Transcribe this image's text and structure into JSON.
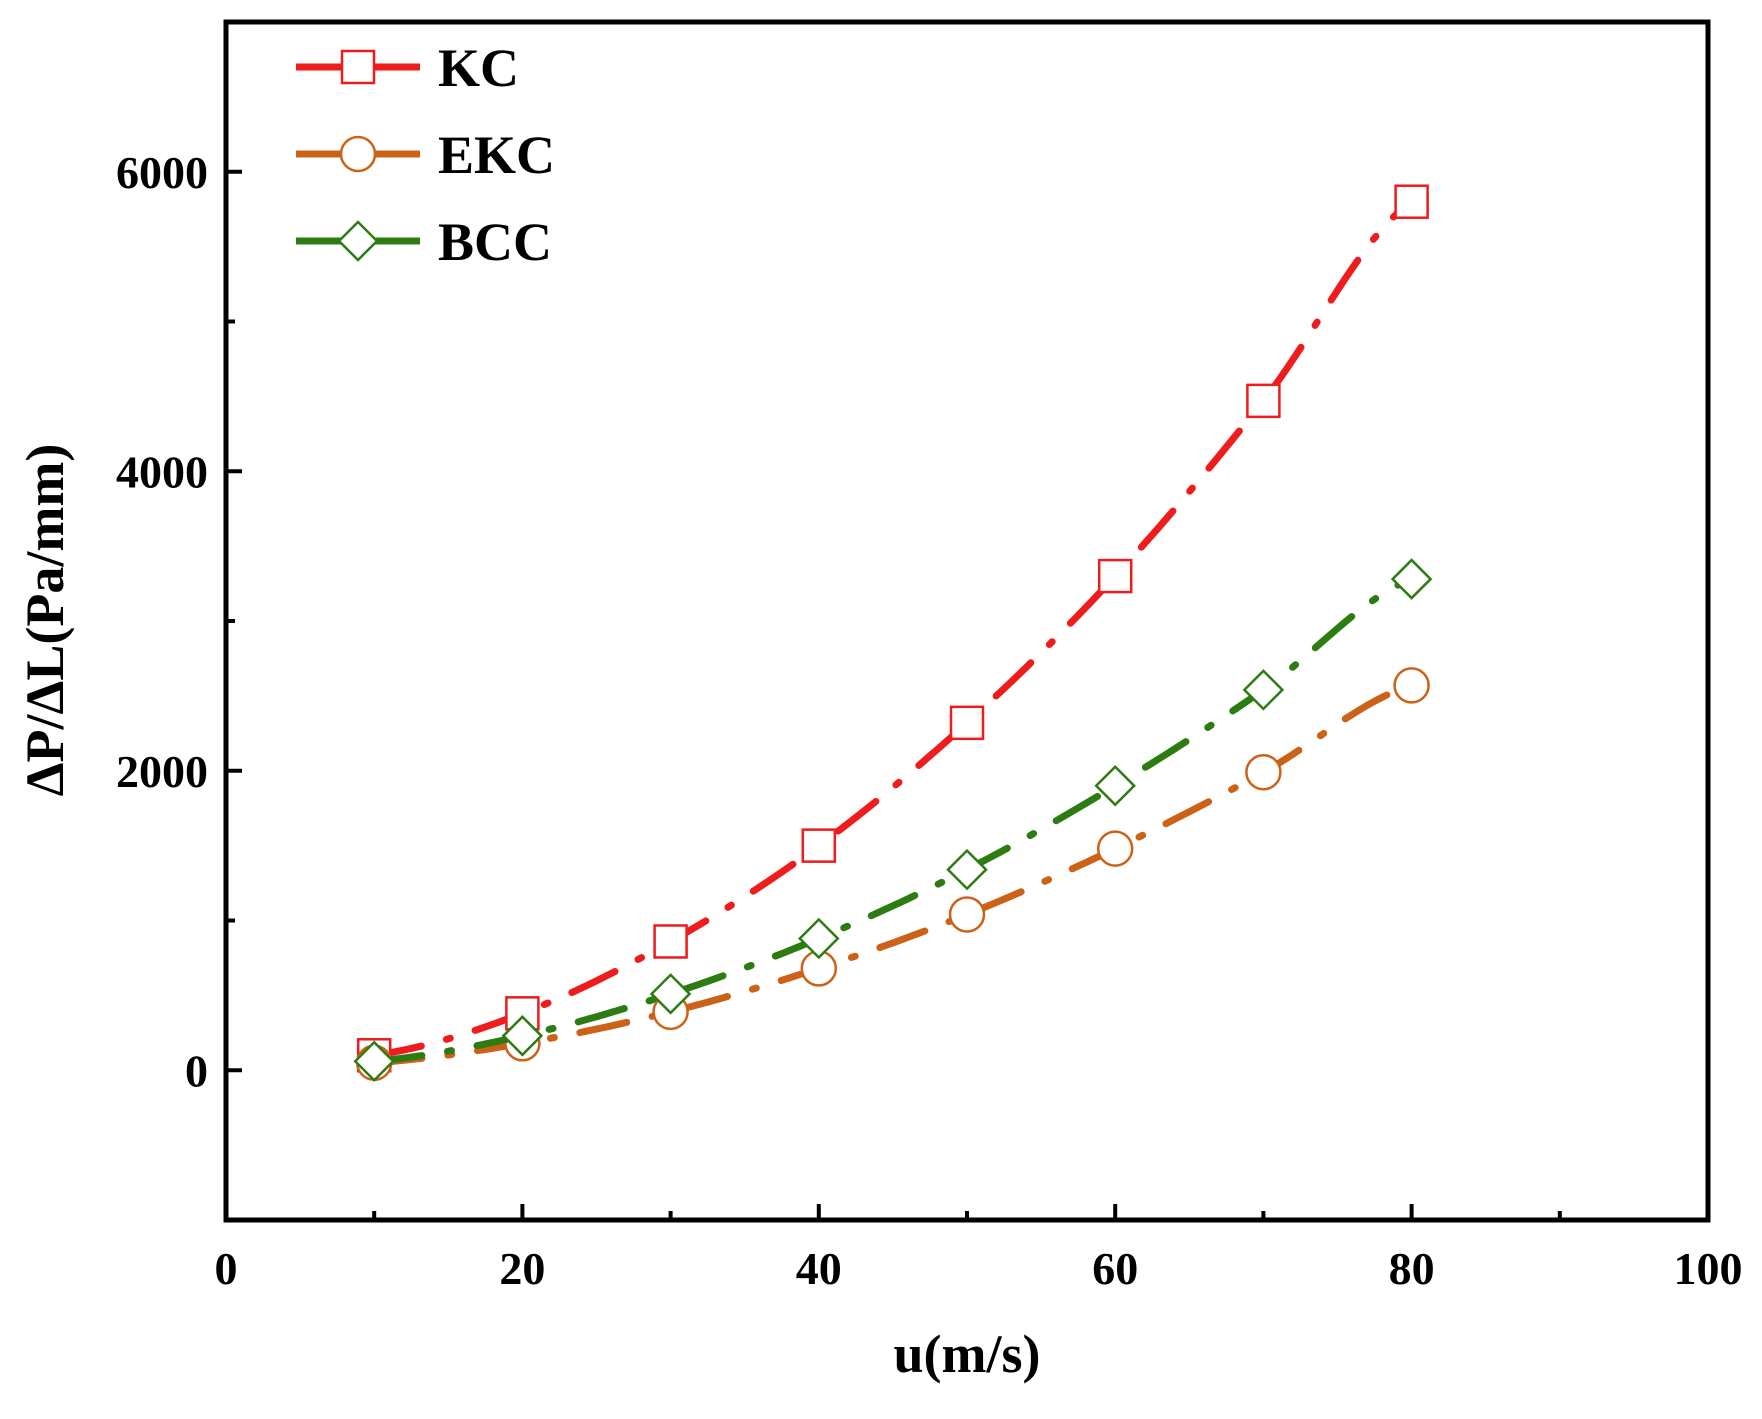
{
  "chart_data": {
    "type": "line",
    "title": "",
    "xlabel": "u(m/s)",
    "ylabel": "ΔP/ΔL(Pa/mm)",
    "xlim": [
      0,
      100
    ],
    "ylim": [
      -1000,
      7000
    ],
    "xticks": [
      0,
      20,
      40,
      60,
      80,
      100
    ],
    "xtick_labels": [
      "0",
      "20",
      "40",
      "60",
      "80",
      "100"
    ],
    "yticks": [
      0,
      2000,
      4000,
      6000
    ],
    "ytick_labels": [
      "0",
      "2000",
      "4000",
      "6000"
    ],
    "grid": false,
    "legend_position": "top-left",
    "x": [
      10,
      20,
      30,
      40,
      50,
      60,
      70,
      80
    ],
    "series": [
      {
        "name": "KC",
        "color": "#ee1c1c",
        "marker": "square",
        "values": [
          100,
          380,
          860,
          1500,
          2320,
          3300,
          4470,
          5800
        ]
      },
      {
        "name": "EKC",
        "color": "#cc6218",
        "marker": "circle",
        "values": [
          50,
          180,
          390,
          680,
          1040,
          1480,
          1990,
          2570
        ]
      },
      {
        "name": "BCC",
        "color": "#2c7c12",
        "marker": "diamond",
        "values": [
          60,
          230,
          510,
          880,
          1340,
          1900,
          2540,
          3280
        ]
      }
    ]
  }
}
